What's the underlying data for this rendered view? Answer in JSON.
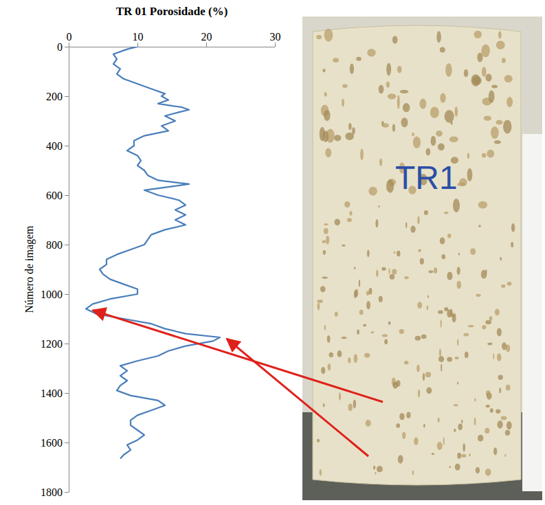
{
  "chart_data": {
    "type": "line",
    "title": "TR 01 Porosidade (%)",
    "y_label": "Número de imagem",
    "x": [
      10,
      8.5,
      6.5,
      7,
      6.5,
      7.5,
      7,
      8,
      10,
      12,
      14,
      13.5,
      14.5,
      13,
      16.5,
      17.5,
      16,
      14,
      15.5,
      13.5,
      14.5,
      11,
      9.5,
      9.5,
      8.5,
      10,
      10.5,
      10,
      11,
      11.5,
      13,
      17.5,
      15,
      11,
      13,
      16,
      17,
      15.5,
      17,
      15.5,
      17,
      14,
      12,
      11.5,
      11,
      9,
      7,
      5.5,
      5.5,
      4.5,
      5,
      6,
      8,
      10,
      10,
      6,
      3.5,
      2.5,
      4,
      8,
      12,
      14,
      17,
      22,
      21,
      17,
      14.5,
      13,
      10,
      7.5,
      8.5,
      7.5,
      8.5,
      7.5,
      7,
      9,
      13,
      14,
      12,
      10,
      9,
      9,
      10,
      11,
      10,
      8.5,
      9,
      8,
      7.5
    ],
    "series": [
      {
        "color": "#4a7ebb",
        "values": [
          0,
          10,
          30,
          50,
          70,
          90,
          110,
          130,
          150,
          170,
          190,
          200,
          215,
          230,
          245,
          255,
          265,
          280,
          300,
          320,
          340,
          360,
          380,
          400,
          420,
          440,
          460,
          480,
          500,
          520,
          540,
          555,
          565,
          580,
          600,
          620,
          640,
          660,
          680,
          700,
          720,
          740,
          760,
          780,
          800,
          820,
          840,
          860,
          880,
          900,
          920,
          940,
          960,
          980,
          1000,
          1020,
          1040,
          1060,
          1080,
          1100,
          1120,
          1140,
          1160,
          1175,
          1190,
          1210,
          1230,
          1250,
          1270,
          1290,
          1310,
          1330,
          1350,
          1370,
          1390,
          1410,
          1430,
          1450,
          1470,
          1490,
          1510,
          1530,
          1550,
          1570,
          1590,
          1610,
          1630,
          1650,
          1665
        ]
      }
    ],
    "xlim": [
      0,
      30
    ],
    "xticks": [
      0,
      10,
      20,
      30
    ],
    "ylim": [
      1800,
      0
    ],
    "yticks": [
      0,
      200,
      400,
      600,
      800,
      1000,
      1200,
      1400,
      1600,
      1800
    ],
    "annotations": [
      "TR1"
    ]
  }
}
